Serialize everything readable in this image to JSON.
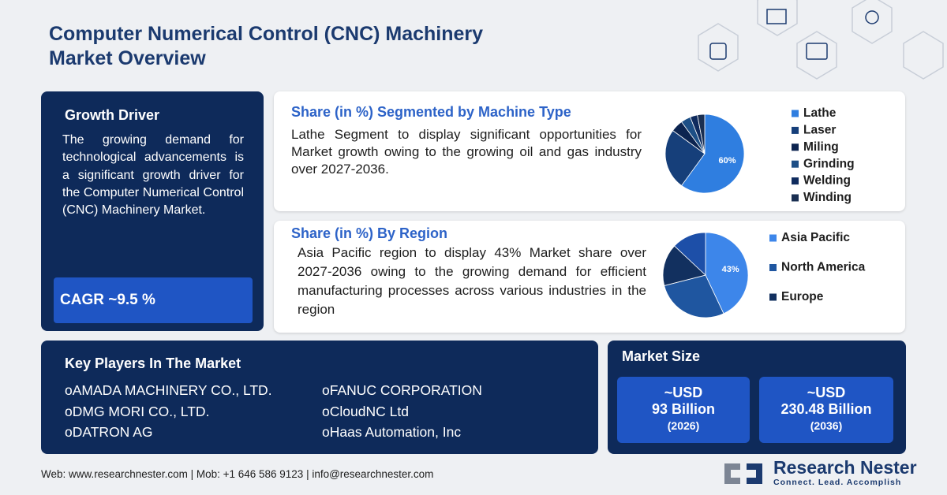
{
  "header": {
    "title_lines": [
      "Computer Numerical Control (CNC) Machinery",
      "Market Overview"
    ]
  },
  "growth_driver": {
    "title": "Growth Driver",
    "text": "The growing demand for technological advancements is a significant growth driver for the Computer Numerical Control (CNC) Machinery Market.",
    "cagr": "CAGR ~9.5 %"
  },
  "machine_type": {
    "title": "Share (in %) Segmented by Machine Type",
    "text": "Lathe Segment to display significant opportunities for Market growth owing to the growing oil and gas industry over 2027-2036.",
    "chart": {
      "type": "pie",
      "categories": [
        "Lathe",
        "Laser",
        "Miling",
        "Grinding",
        "Welding",
        "Winding"
      ],
      "values": [
        60,
        25,
        5,
        4,
        3,
        3
      ],
      "value_labels": [
        "60%",
        null,
        null,
        null,
        null,
        null
      ],
      "colors": [
        "#2f7ee0",
        "#163f7a",
        "#0c2450",
        "#1d4f86",
        "#0f2b5e",
        "#1a2f52"
      ]
    }
  },
  "region": {
    "title": "Share (in %) By Region",
    "text": "Asia Pacific region to display 43% Market share over 2027-2036 owing to the growing demand for efficient manufacturing processes across various industries in the region",
    "chart": {
      "type": "pie",
      "categories": [
        "Asia Pacific",
        "North America",
        "Europe",
        null
      ],
      "values": [
        43,
        28,
        16,
        13
      ],
      "value_labels": [
        "43%",
        null,
        null,
        null
      ],
      "colors": [
        "#3d86ea",
        "#1f56a0",
        "#12305f",
        "#1d4fa8"
      ]
    }
  },
  "key_players": {
    "title": "Key Players In The Market",
    "items": [
      "AMADA MACHINERY CO., LTD.",
      "FANUC CORPORATION",
      "DMG MORI CO., LTD.",
      "CloudNC Ltd",
      "DATRON AG",
      "Haas Automation, Inc"
    ]
  },
  "market_size": {
    "title": "Market Size",
    "cards": [
      {
        "line1": "~USD",
        "line2": "93 Billion",
        "line3": "(2026)"
      },
      {
        "line1": "~USD",
        "line2": "230.48 Billion",
        "line3": "(2036)"
      }
    ]
  },
  "footer": {
    "contact": "Web: www.researchnester.com | Mob: +1 646 586 9123 | info@researchnester.com",
    "brand": "Research Nester",
    "tagline": "Connect. Lead. Accomplish"
  }
}
